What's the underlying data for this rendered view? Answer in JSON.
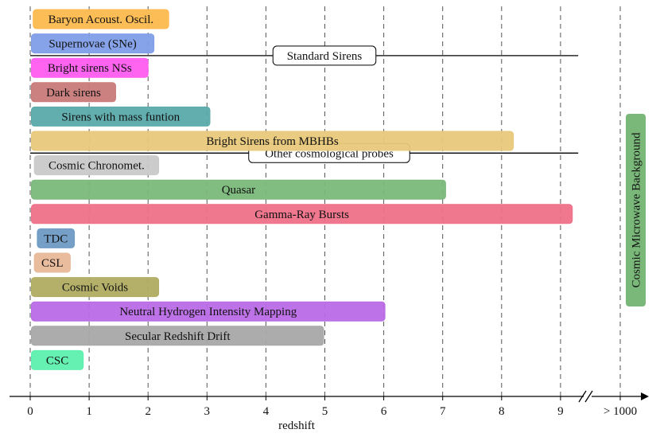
{
  "chart_data": {
    "type": "bar",
    "subtype": "horizontal-range",
    "xlabel": "redshift",
    "xlim": [
      0,
      10
    ],
    "x_ticks": [
      "0",
      "1",
      "2",
      "3",
      "4",
      "5",
      "6",
      "7",
      "8",
      "9"
    ],
    "x_break_tick": "> 1000",
    "grid": "vertical dashed",
    "section_labels": [
      "Standard Sirens",
      "Other cosmological probes"
    ],
    "bars": [
      {
        "label": "Baryon Acoust. Oscil.",
        "start": 0.05,
        "end": 2.35,
        "color": "#fdb94d"
      },
      {
        "label": "Supernovae (SNe)",
        "start": 0.02,
        "end": 2.1,
        "color": "#7f9ee8"
      },
      {
        "label": "Bright sirens NSs",
        "start": 0.02,
        "end": 2.0,
        "color": "#ff5cf0"
      },
      {
        "label": "Dark sirens",
        "start": 0.02,
        "end": 1.45,
        "color": "#c97a7a"
      },
      {
        "label": "Sirens with mass funtion",
        "start": 0.02,
        "end": 3.05,
        "color": "#5aaaaa"
      },
      {
        "label": "Bright Sirens from MBHBs",
        "start": 0.02,
        "end": 8.2,
        "color": "#e8c87a"
      },
      {
        "label": "Cosmic Chronomet.",
        "start": 0.07,
        "end": 2.18,
        "color": "#c9c9c9"
      },
      {
        "label": "Quasar",
        "start": 0.02,
        "end": 7.05,
        "color": "#7ab87a"
      },
      {
        "label": "Gamma-Ray Bursts",
        "start": 0.02,
        "end": 9.2,
        "color": "#ee7088"
      },
      {
        "label": "TDC",
        "start": 0.12,
        "end": 0.75,
        "color": "#6f9ac4"
      },
      {
        "label": "CSL",
        "start": 0.07,
        "end": 0.68,
        "color": "#e8b898"
      },
      {
        "label": "Cosmic Voids",
        "start": 0.02,
        "end": 2.18,
        "color": "#b0ac62"
      },
      {
        "label": "Neutral Hydrogen Intensity Mapping",
        "start": 0.02,
        "end": 6.02,
        "color": "#b96ae6"
      },
      {
        "label": "Secular Redshift Drift",
        "start": 0.02,
        "end": 4.98,
        "color": "#a8a8a8"
      },
      {
        "label": "CSC",
        "start": 0.02,
        "end": 0.9,
        "color": "#5df0ae"
      }
    ],
    "cmb": {
      "label": "Cosmic Microwave Background",
      "color": "#7ab87a"
    }
  }
}
